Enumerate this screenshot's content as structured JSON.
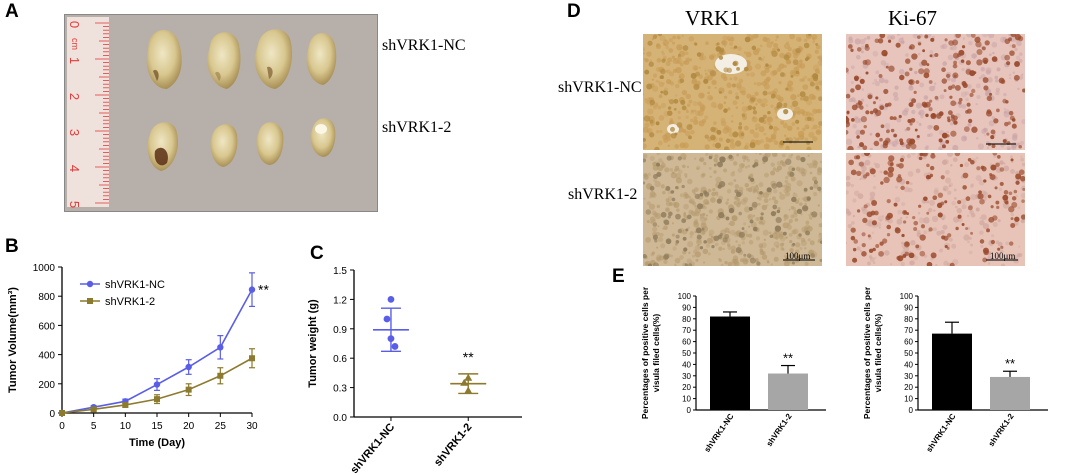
{
  "panels": {
    "A": {
      "label": "A",
      "ruler_unit": "cm",
      "ruler_numbers": [
        "0",
        "1",
        "2",
        "3",
        "4",
        "5"
      ],
      "group_labels": [
        "shVRK1-NC",
        "shVRK1-2"
      ]
    },
    "B": {
      "label": "B"
    },
    "C": {
      "label": "C"
    },
    "D": {
      "label": "D",
      "column_headers": [
        "VRK1",
        "Ki-67"
      ],
      "row_labels": [
        "shVRK1-NC",
        "shVRK1-2"
      ],
      "scale_bar_text": "100μm"
    },
    "E": {
      "label": "E"
    }
  },
  "colors": {
    "nc_series": "#5a5ee6",
    "kd_series": "#8c7a2e",
    "bar_nc": "#000000",
    "bar_kd": "#a6a6a6",
    "photo_background": "#b5aea8",
    "ruler": "#e23b3b",
    "ihc_brown_tissue": "#d6b479",
    "ihc_pink_tissue": "#e9c6bf",
    "ihc_nuclei": "#9a4a2c"
  },
  "chart_data": [
    {
      "panel": "B",
      "type": "line",
      "x": [
        0,
        5,
        10,
        15,
        20,
        25,
        30
      ],
      "series": [
        {
          "name": "shVRK1-NC",
          "values": [
            0,
            40,
            80,
            195,
            315,
            450,
            845
          ],
          "errors": [
            0,
            10,
            15,
            40,
            50,
            80,
            115
          ],
          "marker": "circle"
        },
        {
          "name": "shVRK1-2",
          "values": [
            0,
            25,
            55,
            95,
            160,
            255,
            375
          ],
          "errors": [
            0,
            8,
            15,
            30,
            40,
            55,
            65
          ],
          "marker": "square"
        }
      ],
      "xlabel": "Time (Day)",
      "ylabel": "Tumor Volume(mm³)",
      "xlim": [
        0,
        30
      ],
      "ylim": [
        0,
        1000
      ],
      "xticks": [
        "0",
        "5",
        "10",
        "15",
        "20",
        "25",
        "30"
      ],
      "yticks": [
        "0",
        "200",
        "400",
        "600",
        "800",
        "1000"
      ],
      "annotation": "**",
      "legend_position": "top-left"
    },
    {
      "panel": "C",
      "type": "scatter",
      "categories": [
        "shVRK1-NC",
        "shVRK1-2"
      ],
      "series": [
        {
          "category": "shVRK1-NC",
          "points": [
            1.2,
            1.0,
            0.8,
            0.72
          ],
          "mean": 0.89,
          "sd": 0.22
        },
        {
          "category": "shVRK1-2",
          "points": [
            0.4,
            0.35,
            0.27
          ],
          "mean": 0.34,
          "sd": 0.1
        }
      ],
      "ylabel": "Tumor weight (g)",
      "ylim": [
        0,
        1.5
      ],
      "yticks": [
        "0.0",
        "0.3",
        "0.6",
        "0.9",
        "1.2",
        "1.5"
      ],
      "annotation": "**"
    },
    {
      "panel": "E-left",
      "type": "bar",
      "categories": [
        "shVRK1-NC",
        "shVRK1-2"
      ],
      "values": [
        82,
        32
      ],
      "errors": [
        4,
        7
      ],
      "ylabel": "Percentages of positive cells per visula filed cells(%)",
      "ylim": [
        0,
        100
      ],
      "yticks": [
        "0",
        "10",
        "20",
        "30",
        "40",
        "50",
        "60",
        "70",
        "80",
        "90",
        "100"
      ],
      "annotation": "**"
    },
    {
      "panel": "E-right",
      "type": "bar",
      "categories": [
        "shVRK1-NC",
        "shVRK1-2"
      ],
      "values": [
        67,
        29
      ],
      "errors": [
        10,
        5
      ],
      "ylabel": "Percentages of positive cells per visula filed cells(%)",
      "ylim": [
        0,
        100
      ],
      "yticks": [
        "0",
        "10",
        "20",
        "30",
        "40",
        "50",
        "60",
        "70",
        "80",
        "90",
        "100"
      ],
      "annotation": "**"
    }
  ]
}
